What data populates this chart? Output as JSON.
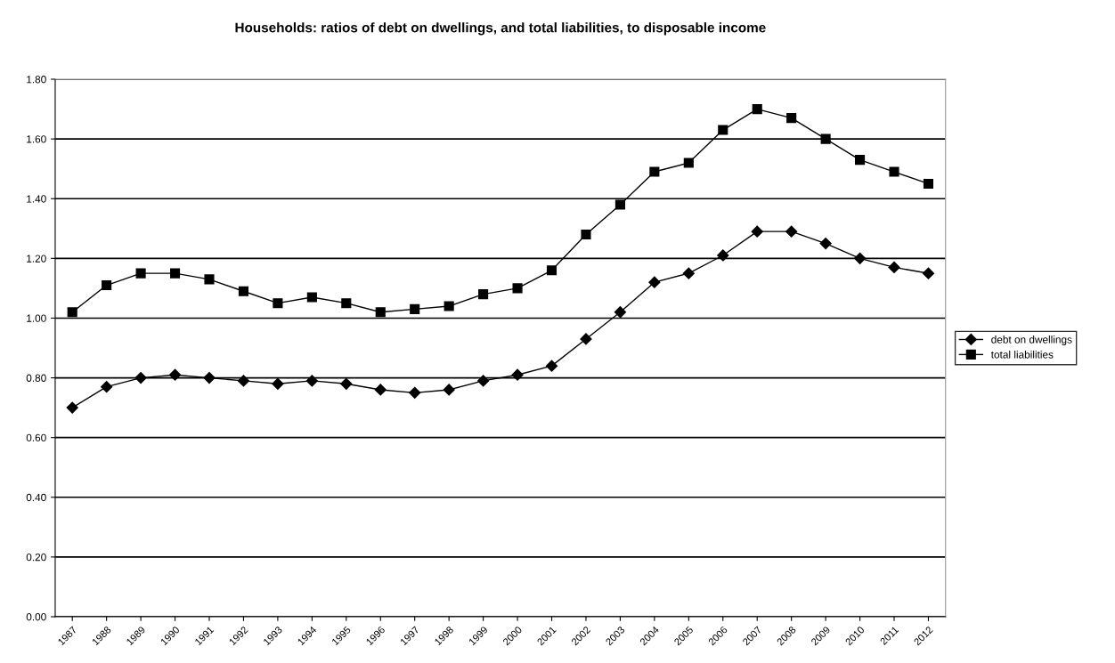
{
  "chart_data": {
    "type": "line",
    "title": "Households: ratios of debt on dwellings, and total liabilities, to disposable income",
    "categories": [
      "1987",
      "1988",
      "1989",
      "1990",
      "1991",
      "1992",
      "1993",
      "1994",
      "1995",
      "1996",
      "1997",
      "1998",
      "1999",
      "2000",
      "2001",
      "2002",
      "2003",
      "2004",
      "2005",
      "2006",
      "2007",
      "2008",
      "2009",
      "2010",
      "2011",
      "2012"
    ],
    "series": [
      {
        "name": "debt on dwellings",
        "color": "#000000",
        "marker": "diamond",
        "values": [
          0.7,
          0.77,
          0.8,
          0.81,
          0.8,
          0.79,
          0.78,
          0.79,
          0.78,
          0.76,
          0.75,
          0.76,
          0.79,
          0.81,
          0.84,
          0.93,
          1.02,
          1.12,
          1.15,
          1.21,
          1.29,
          1.29,
          1.25,
          1.2,
          1.17,
          1.15
        ]
      },
      {
        "name": "total liabilities",
        "color": "#000000",
        "marker": "square",
        "values": [
          1.02,
          1.11,
          1.15,
          1.15,
          1.13,
          1.09,
          1.05,
          1.07,
          1.05,
          1.02,
          1.03,
          1.04,
          1.08,
          1.1,
          1.16,
          1.28,
          1.38,
          1.49,
          1.52,
          1.63,
          1.7,
          1.67,
          1.6,
          1.53,
          1.49,
          1.45
        ]
      }
    ],
    "ylim": [
      0,
      1.8
    ],
    "yticks": [
      {
        "value": 0,
        "label": "0.00"
      },
      {
        "value": 0.2,
        "label": "0.20"
      },
      {
        "value": 0.4,
        "label": "0.40"
      },
      {
        "value": 0.6,
        "label": "0.60"
      },
      {
        "value": 0.8,
        "label": "0.80"
      },
      {
        "value": 1.0,
        "label": "1.00"
      },
      {
        "value": 1.2,
        "label": "1.20"
      },
      {
        "value": 1.4,
        "label": "1.40"
      },
      {
        "value": 1.6,
        "label": "1.60"
      },
      {
        "value": 1.8,
        "label": "1.80"
      }
    ],
    "grid": "y",
    "legend": "right",
    "line_style": "solid"
  }
}
